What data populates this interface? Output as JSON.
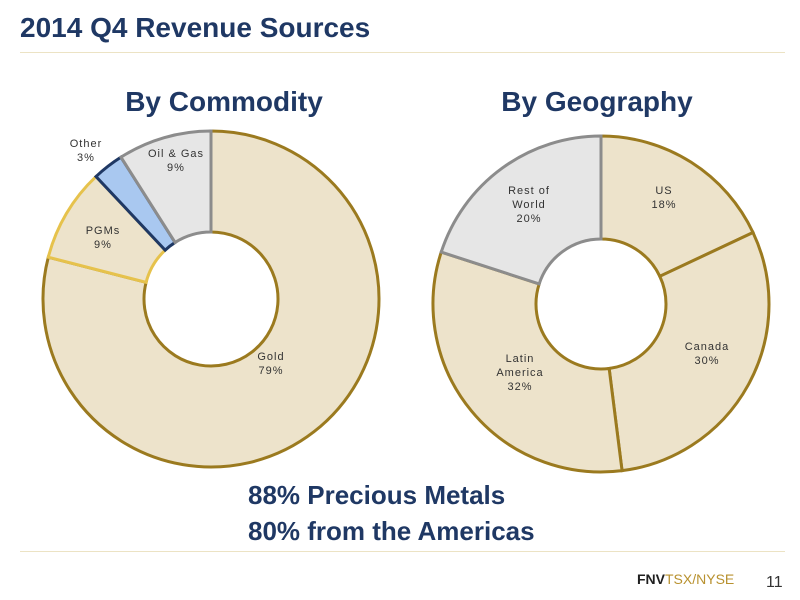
{
  "title": "2014 Q4 Revenue Sources",
  "summary": [
    "88% Precious Metals",
    "80% from the Americas"
  ],
  "footer": {
    "logo_company": "FNV",
    "logo_exchange": "TSX/NYSE",
    "page_number": "11"
  },
  "colors": {
    "title": "#1f3864",
    "gold_fill": "#ede3cb",
    "gold_stroke": "#9b7a1f",
    "pgm_stroke": "#e6c24c",
    "other_fill": "#a9c8f0",
    "other_stroke": "#1f3864",
    "oilgas_fill": "#e6e6e6",
    "gray_stroke": "#8c8c8c"
  },
  "chart_data": [
    {
      "type": "pie",
      "donut": true,
      "title": "By Commodity",
      "slices": [
        {
          "label": [
            "Gold"
          ],
          "value": 79,
          "display": "79%",
          "fill": "#ede3cb",
          "stroke": "#9b7a1f"
        },
        {
          "label": [
            "PGMs"
          ],
          "value": 9,
          "display": "9%",
          "fill": "#ede3cb",
          "stroke": "#e6c24c"
        },
        {
          "label": [
            "Other"
          ],
          "value": 3,
          "display": "3%",
          "fill": "#a9c8f0",
          "stroke": "#1f3864"
        },
        {
          "label": [
            "Oil & Gas"
          ],
          "value": 9,
          "display": "9%",
          "fill": "#e6e6e6",
          "stroke": "#8c8c8c"
        }
      ]
    },
    {
      "type": "pie",
      "donut": true,
      "title": "By Geography",
      "slices": [
        {
          "label": [
            "US"
          ],
          "value": 18,
          "display": "18%",
          "fill": "#ede3cb",
          "stroke": "#9b7a1f"
        },
        {
          "label": [
            "Canada"
          ],
          "value": 30,
          "display": "30%",
          "fill": "#ede3cb",
          "stroke": "#9b7a1f"
        },
        {
          "label": [
            "Latin",
            "America"
          ],
          "value": 32,
          "display": "32%",
          "fill": "#ede3cb",
          "stroke": "#9b7a1f"
        },
        {
          "label": [
            "Rest of",
            "World"
          ],
          "value": 20,
          "display": "20%",
          "fill": "#e6e6e6",
          "stroke": "#8c8c8c"
        }
      ]
    }
  ]
}
